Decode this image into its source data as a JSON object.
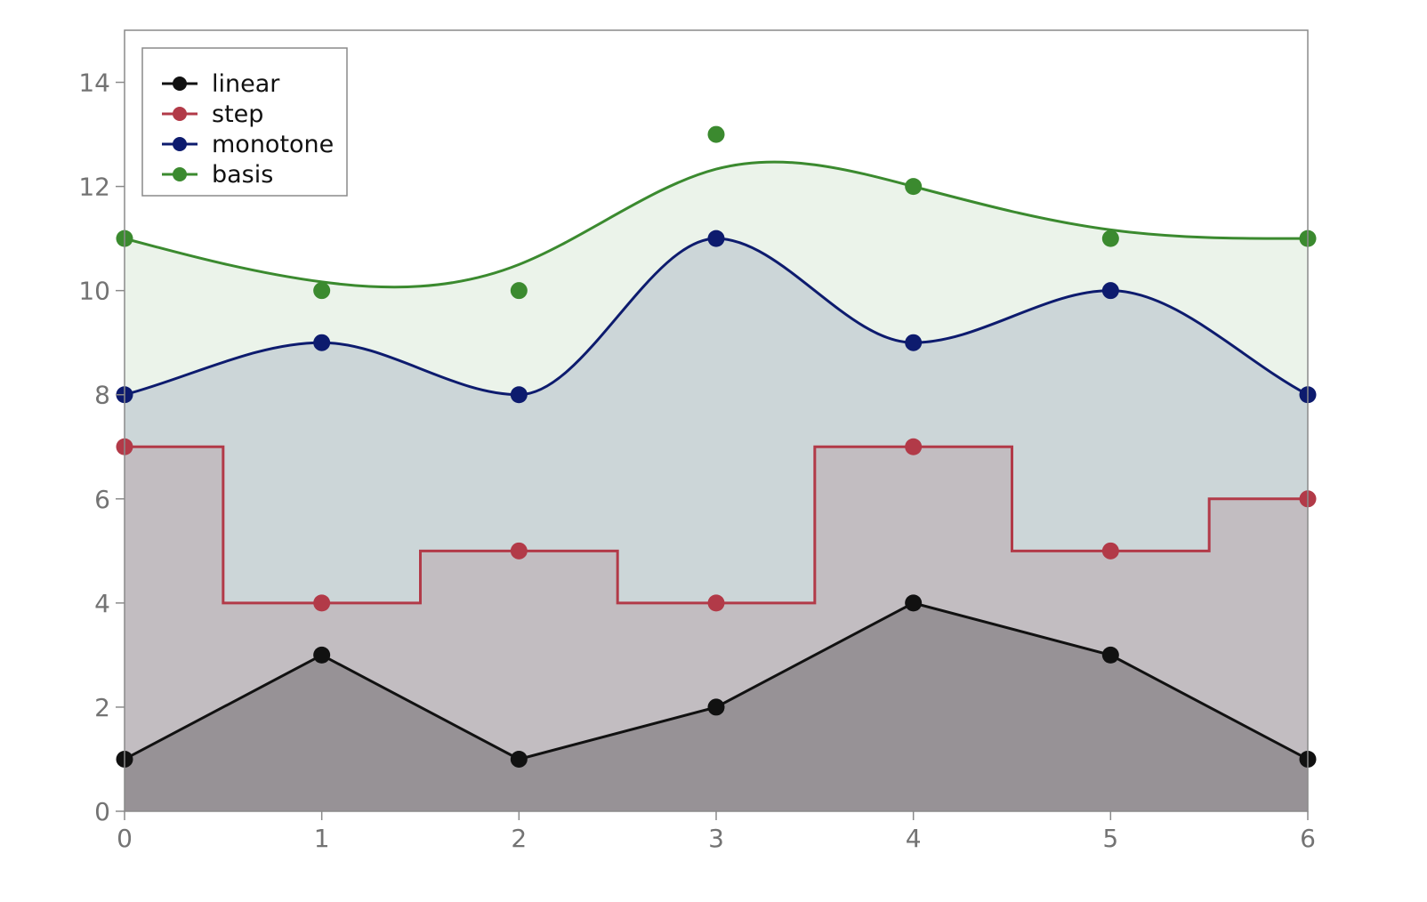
{
  "chart_data": {
    "type": "area",
    "x": [
      0,
      1,
      2,
      3,
      4,
      5,
      6
    ],
    "xlim": [
      0,
      6
    ],
    "ylim": [
      0,
      15
    ],
    "xticks": [
      0,
      1,
      2,
      3,
      4,
      5,
      6
    ],
    "yticks": [
      0,
      2,
      4,
      6,
      8,
      10,
      12,
      14
    ],
    "grid": false,
    "legend_position": "top-left",
    "series": [
      {
        "name": "linear",
        "interpolation": "linear",
        "color": "#111111",
        "fill_opacity": 0.28,
        "values": [
          1,
          3,
          1,
          2,
          4,
          3,
          1
        ]
      },
      {
        "name": "step",
        "interpolation": "step",
        "color": "#b23a48",
        "fill_opacity": 0.16,
        "values": [
          7,
          4,
          5,
          4,
          7,
          5,
          6
        ]
      },
      {
        "name": "monotone",
        "interpolation": "monotone",
        "color": "#0d1b6e",
        "fill_opacity": 0.14,
        "values": [
          8,
          9,
          8,
          11,
          9,
          10,
          8
        ]
      },
      {
        "name": "basis",
        "interpolation": "basis",
        "color": "#3b8a2f",
        "fill_opacity": 0.1,
        "values": [
          11,
          10,
          10,
          13,
          12,
          11,
          11
        ]
      }
    ]
  }
}
